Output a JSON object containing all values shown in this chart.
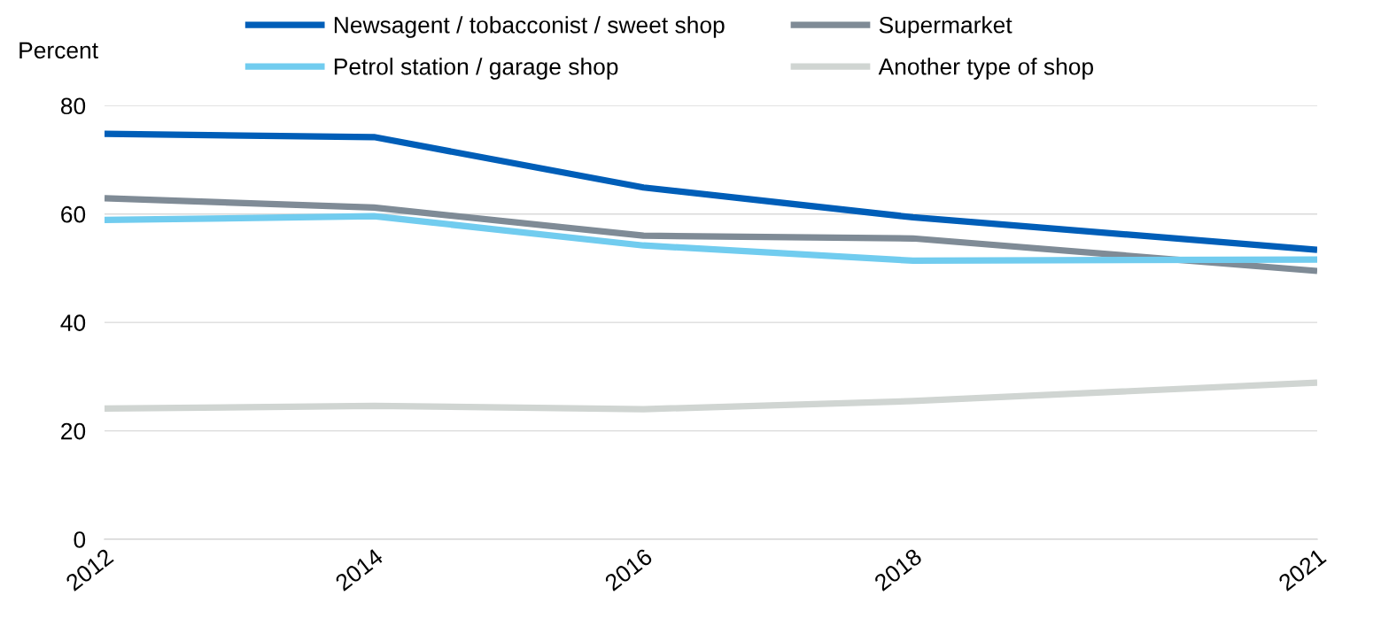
{
  "chart_data": {
    "type": "line",
    "ylabel": "Percent",
    "x": [
      2012,
      2014,
      2016,
      2018,
      2021
    ],
    "xlim": [
      2012,
      2021
    ],
    "xticks": [
      2012,
      2014,
      2016,
      2018,
      2021
    ],
    "ylim": [
      0,
      80
    ],
    "yticks": [
      0,
      20,
      40,
      60,
      80
    ],
    "grid": "y",
    "legend": "top",
    "marker": "none",
    "line_style": "solid",
    "series": [
      {
        "name": "Newsagent / tobacconist / sweet shop",
        "color": "#005eb8",
        "values": [
          74.8,
          74.2,
          64.9,
          59.4,
          53.4
        ]
      },
      {
        "name": "Supermarket",
        "color": "#7f8b96",
        "values": [
          62.9,
          61.2,
          56.0,
          55.5,
          49.5
        ]
      },
      {
        "name": "Petrol station / garage shop",
        "color": "#71ccef",
        "values": [
          58.9,
          59.6,
          54.2,
          51.4,
          51.6
        ]
      },
      {
        "name": "Another type of shop",
        "color": "#d0d5d2",
        "values": [
          24.1,
          24.6,
          24.0,
          25.5,
          28.9
        ]
      }
    ]
  }
}
